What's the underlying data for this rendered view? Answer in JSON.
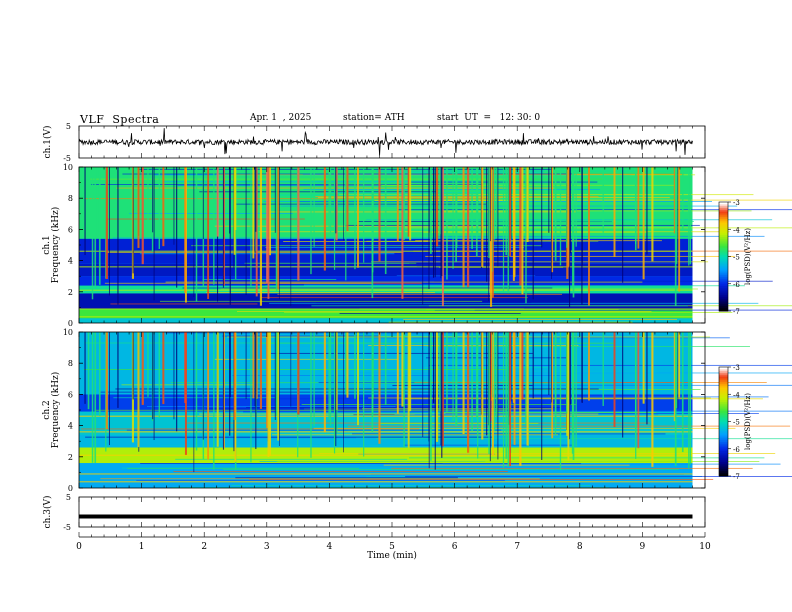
{
  "header": {
    "title": "VLF  Spectra",
    "date": "Apr. 1  , 2025",
    "station": "station= ATH",
    "start_ut": "start  UT  =   12: 30: 0"
  },
  "chart_data": [
    {
      "type": "line",
      "id": "ch1-waveform",
      "ylabel": "ch.1(V)",
      "ylim": [
        -5,
        5
      ],
      "yticks": [
        "5",
        "-5"
      ],
      "x_range_min": [
        0,
        9.8
      ],
      "description_of_series": "noisy waveform near 0 V with occasional spikes"
    },
    {
      "type": "heatmap",
      "id": "ch1-spectrogram",
      "ylabel": "ch.1\nFrequency (kHz)",
      "ylabel_line1": "ch.1",
      "ylabel_line2": "Frequency (kHz)",
      "ylim": [
        0,
        10
      ],
      "yticks": [
        "0",
        "2",
        "4",
        "6",
        "8",
        "10"
      ],
      "colorbar": {
        "label": "log(PSD)(V²/Hz)",
        "range": [
          -7,
          -3
        ],
        "ticks": [
          "-3",
          "-4",
          "-5",
          "-6",
          "-7"
        ]
      },
      "bands_khz": [
        {
          "low": 0.0,
          "high": 0.3,
          "level": -5.2
        },
        {
          "low": 0.3,
          "high": 0.9,
          "level": -4.6
        },
        {
          "low": 0.9,
          "high": 1.9,
          "level": -6.3
        },
        {
          "low": 1.9,
          "high": 2.4,
          "level": -4.9
        },
        {
          "low": 2.4,
          "high": 3.0,
          "level": -6.0
        },
        {
          "low": 3.0,
          "high": 3.8,
          "level": -6.2
        },
        {
          "low": 3.8,
          "high": 5.4,
          "level": -6.1
        },
        {
          "low": 5.4,
          "high": 10.0,
          "level": -4.8
        }
      ]
    },
    {
      "type": "heatmap",
      "id": "ch2-spectrogram",
      "ylabel_line1": "ch.2",
      "ylabel_line2": "Frequency (kHz)",
      "ylim": [
        0,
        10
      ],
      "yticks": [
        "0",
        "2",
        "4",
        "6",
        "8",
        "10"
      ],
      "colorbar": {
        "label": "log(PSD)(V²/Hz)",
        "range": [
          -7,
          -3
        ],
        "ticks": [
          "-3",
          "-4",
          "-5",
          "-6",
          "-7"
        ]
      },
      "bands_khz": [
        {
          "low": 0.0,
          "high": 1.6,
          "level": -5.4
        },
        {
          "low": 1.6,
          "high": 2.6,
          "level": -4.2
        },
        {
          "low": 2.6,
          "high": 3.4,
          "level": -5.3
        },
        {
          "low": 3.4,
          "high": 4.9,
          "level": -5.2
        },
        {
          "low": 4.9,
          "high": 6.0,
          "level": -5.9
        },
        {
          "low": 6.0,
          "high": 10.0,
          "level": -5.3
        }
      ]
    },
    {
      "type": "line",
      "id": "ch3-waveform",
      "ylabel": "ch.3(V)",
      "ylim": [
        -5,
        5
      ],
      "yticks": [
        "5",
        "-5"
      ],
      "constant_value": -1.5
    }
  ],
  "xaxis": {
    "label": "Time  (min)",
    "ticks": [
      "0",
      "1",
      "2",
      "3",
      "4",
      "5",
      "6",
      "7",
      "8",
      "9",
      "10"
    ],
    "xlim": [
      0,
      10
    ]
  }
}
